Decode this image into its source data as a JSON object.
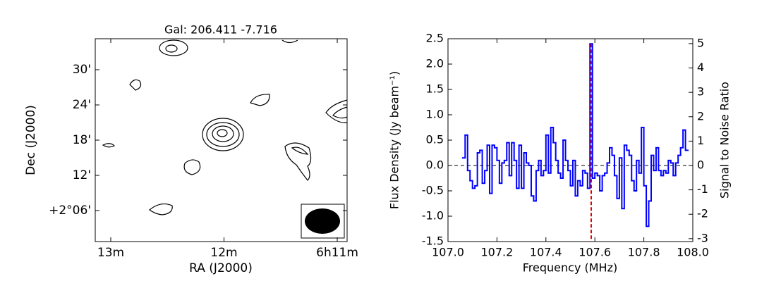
{
  "chart_data": [
    {
      "type": "contour",
      "title": "Gal: 206.411 -7.716",
      "xlabel": "RA (J2000)",
      "ylabel": "Dec (J2000)",
      "xlim": [
        13.137,
        10.913
      ],
      "xticks": [
        {
          "value": 13,
          "label": "13m"
        },
        {
          "value": 12,
          "label": "12m"
        },
        {
          "value": 11,
          "label": "6h11m"
        }
      ],
      "ylim": [
        0.72,
        35.28
      ],
      "yticks": [
        {
          "value": 6,
          "label": "+2°06'"
        },
        {
          "value": 12,
          "label": "12'"
        },
        {
          "value": 18,
          "label": "18'"
        },
        {
          "value": 24,
          "label": "24'"
        },
        {
          "value": 30,
          "label": "30'"
        }
      ],
      "color": "#000000"
    },
    {
      "type": "step",
      "xlabel": "Frequency (MHz)",
      "ylabel": "Flux Density (Jy beam⁻¹)",
      "y2label": "Signal to Noise Ratio",
      "xlim": [
        107.0,
        108.0
      ],
      "xticks": [
        {
          "value": 107.0,
          "label": "107.0"
        },
        107.2,
        107.4,
        107.6,
        107.8,
        {
          "value": 108.0,
          "label": "108.0"
        }
      ],
      "ylim": [
        -1.5,
        2.5
      ],
      "yticks": [
        -1.5,
        {
          "value": -1.0,
          "label": "-1.0"
        },
        -0.5,
        {
          "value": 0.0,
          "label": "0.0"
        },
        0.5,
        {
          "value": 1.0,
          "label": "1.0"
        },
        1.5,
        {
          "value": 2.0,
          "label": "2.0"
        },
        2.5
      ],
      "y2lim": [
        -3.12,
        5.2
      ],
      "y2ticks": [
        -3,
        -2,
        -1,
        0,
        1,
        2,
        3,
        4,
        5
      ],
      "color": "#0000ff",
      "hline": {
        "value": 0,
        "color": "#000000"
      },
      "vline": {
        "value": 107.585,
        "color": "#e00000"
      },
      "x": [
        107.06,
        107.07,
        107.08,
        107.09,
        107.1,
        107.11,
        107.12,
        107.13,
        107.14,
        107.15,
        107.16,
        107.17,
        107.18,
        107.19,
        107.2,
        107.21,
        107.22,
        107.23,
        107.24,
        107.25,
        107.26,
        107.27,
        107.28,
        107.29,
        107.3,
        107.31,
        107.32,
        107.33,
        107.34,
        107.35,
        107.36,
        107.37,
        107.38,
        107.39,
        107.4,
        107.41,
        107.42,
        107.43,
        107.44,
        107.45,
        107.46,
        107.47,
        107.48,
        107.49,
        107.5,
        107.51,
        107.52,
        107.53,
        107.54,
        107.55,
        107.56,
        107.57,
        107.58,
        107.59,
        107.6,
        107.61,
        107.62,
        107.63,
        107.64,
        107.65,
        107.66,
        107.67,
        107.68,
        107.69,
        107.7,
        107.71,
        107.72,
        107.73,
        107.74,
        107.75,
        107.76,
        107.77,
        107.78,
        107.79,
        107.8,
        107.81,
        107.82,
        107.83,
        107.84,
        107.85,
        107.86,
        107.87,
        107.88,
        107.89,
        107.9,
        107.91,
        107.92,
        107.93,
        107.94,
        107.95,
        107.96,
        107.97
      ],
      "values": [
        0.15,
        0.6,
        -0.1,
        -0.3,
        -0.45,
        -0.4,
        0.25,
        0.3,
        -0.35,
        -0.1,
        0.4,
        -0.55,
        0.4,
        0.35,
        0.1,
        -0.35,
        0.05,
        0.1,
        0.45,
        -0.2,
        0.45,
        0.1,
        -0.45,
        0.4,
        -0.45,
        0.25,
        0.05,
        0.0,
        -0.6,
        -0.7,
        -0.1,
        0.1,
        -0.2,
        -0.1,
        0.6,
        -0.15,
        0.75,
        0.45,
        0.1,
        -0.15,
        -0.25,
        0.5,
        0.1,
        -0.1,
        -0.4,
        0.1,
        -0.6,
        -0.3,
        -0.4,
        -0.1,
        -0.15,
        -0.45,
        2.4,
        -0.25,
        -0.15,
        -0.2,
        -0.5,
        -0.2,
        -0.15,
        0.05,
        0.35,
        0.2,
        -0.2,
        -0.65,
        0.15,
        -0.85,
        0.4,
        0.3,
        0.2,
        -0.3,
        -0.5,
        0.1,
        -0.15,
        0.75,
        -0.4,
        -1.2,
        -0.7,
        0.2,
        -0.1,
        0.35,
        -0.1,
        -0.2,
        -0.1,
        -0.15,
        0.1,
        0.05,
        -0.2,
        0.05,
        0.2,
        0.35,
        0.7,
        0.3
      ]
    }
  ]
}
